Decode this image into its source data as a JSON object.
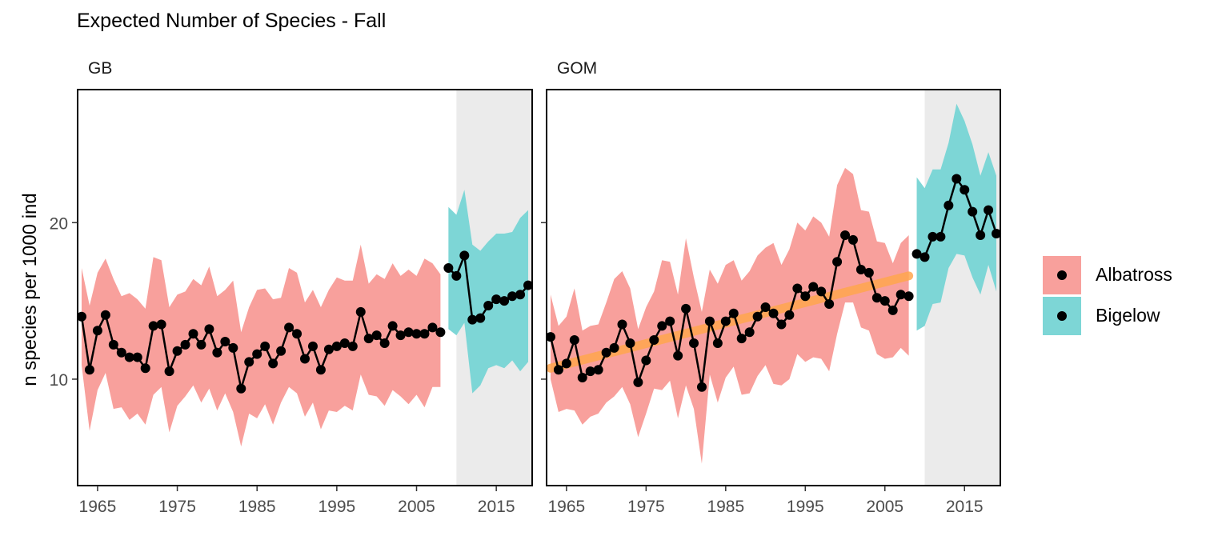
{
  "title": "Expected Number of Species - Fall",
  "ylabel": "n species per 1000 ind",
  "legend": [
    {
      "label": "Albatross",
      "color": "#F8A09C"
    },
    {
      "label": "Bigelow",
      "color": "#7DD6D6"
    }
  ],
  "colors": {
    "albatross_ribbon": "#F8A09C",
    "bigelow_ribbon": "#7DD6D6",
    "bigelow_period_shade": "#EBEBEB",
    "trend_line": "#FFA64D",
    "points": "#000000"
  },
  "chart_data": {
    "type": "line",
    "xlim": [
      1962.5,
      2019.5
    ],
    "ylim": [
      3.2,
      28.5
    ],
    "x_ticks": [
      1965,
      1975,
      1985,
      1995,
      2005,
      2015
    ],
    "y_ticks": [
      10,
      20
    ],
    "bigelow_shade_from": 2010,
    "panels": [
      {
        "name": "GB",
        "series": [
          {
            "name": "Albatross",
            "x": [
              1963,
              1964,
              1965,
              1966,
              1967,
              1968,
              1969,
              1970,
              1971,
              1972,
              1973,
              1974,
              1975,
              1976,
              1977,
              1978,
              1979,
              1980,
              1981,
              1982,
              1983,
              1984,
              1985,
              1986,
              1987,
              1988,
              1989,
              1990,
              1991,
              1992,
              1993,
              1994,
              1995,
              1996,
              1997,
              1998,
              1999,
              2000,
              2001,
              2002,
              2003,
              2004,
              2005,
              2006,
              2007,
              2008
            ],
            "y": [
              14.0,
              10.6,
              13.1,
              14.1,
              12.2,
              11.7,
              11.4,
              11.4,
              10.7,
              13.4,
              13.5,
              10.5,
              11.8,
              12.2,
              12.9,
              12.2,
              13.2,
              11.7,
              12.4,
              12.0,
              9.4,
              11.1,
              11.6,
              12.1,
              11.0,
              11.8,
              13.3,
              12.9,
              11.3,
              12.1,
              10.6,
              11.9,
              12.1,
              12.3,
              12.1,
              14.3,
              12.6,
              12.8,
              12.3,
              13.4,
              12.8,
              13.0,
              12.9,
              12.9,
              13.3,
              13.0
            ],
            "upper": [
              17.1,
              14.7,
              16.8,
              17.7,
              16.4,
              15.3,
              15.5,
              15.1,
              14.5,
              17.8,
              17.6,
              14.6,
              15.4,
              15.6,
              16.4,
              16.0,
              17.2,
              15.3,
              15.7,
              16.3,
              13.0,
              14.6,
              15.7,
              15.8,
              15.1,
              15.2,
              17.1,
              16.8,
              14.9,
              15.7,
              14.6,
              15.7,
              16.5,
              16.3,
              16.3,
              18.6,
              16.1,
              16.7,
              16.4,
              17.4,
              16.6,
              17.0,
              16.6,
              17.7,
              17.4,
              16.7
            ],
            "lower": [
              10.9,
              6.7,
              9.3,
              10.4,
              8.1,
              8.2,
              7.4,
              7.8,
              7.1,
              9.0,
              9.5,
              6.6,
              8.3,
              8.9,
              9.6,
              8.5,
              9.4,
              8.0,
              9.1,
              7.9,
              5.7,
              7.8,
              7.5,
              8.4,
              7.1,
              8.5,
              9.5,
              9.1,
              7.6,
              8.5,
              6.8,
              8.0,
              7.9,
              8.3,
              8.0,
              10.3,
              9.0,
              8.9,
              8.3,
              9.3,
              8.9,
              8.4,
              9.0,
              8.2,
              9.5,
              9.5
            ]
          },
          {
            "name": "Bigelow",
            "x": [
              2009,
              2010,
              2011,
              2012,
              2013,
              2014,
              2015,
              2016,
              2017,
              2018,
              2019
            ],
            "y": [
              17.1,
              16.6,
              17.9,
              13.8,
              13.9,
              14.7,
              15.1,
              15.0,
              15.3,
              15.4,
              16.0
            ],
            "upper": [
              21.0,
              20.5,
              22.1,
              18.6,
              18.2,
              18.8,
              19.3,
              19.3,
              19.4,
              20.3,
              20.8
            ],
            "lower": [
              13.2,
              12.8,
              13.6,
              9.1,
              9.6,
              10.7,
              10.9,
              10.7,
              11.2,
              10.5,
              11.1
            ]
          }
        ]
      },
      {
        "name": "GOM",
        "trend": {
          "x": [
            1963,
            2008
          ],
          "y": [
            10.7,
            16.6
          ]
        },
        "series": [
          {
            "name": "Albatross",
            "x": [
              1963,
              1964,
              1965,
              1966,
              1967,
              1968,
              1969,
              1970,
              1971,
              1972,
              1973,
              1974,
              1975,
              1976,
              1977,
              1978,
              1979,
              1980,
              1981,
              1982,
              1983,
              1984,
              1985,
              1986,
              1987,
              1988,
              1989,
              1990,
              1991,
              1992,
              1993,
              1994,
              1995,
              1996,
              1997,
              1998,
              1999,
              2000,
              2001,
              2002,
              2003,
              2004,
              2005,
              2006,
              2007,
              2008
            ],
            "y": [
              12.7,
              10.6,
              11.0,
              12.5,
              10.1,
              10.5,
              10.6,
              11.7,
              12.0,
              13.5,
              12.3,
              9.8,
              11.2,
              12.5,
              13.4,
              13.7,
              11.5,
              14.5,
              12.3,
              9.5,
              13.7,
              12.3,
              13.7,
              14.2,
              12.6,
              13.0,
              14.0,
              14.6,
              14.2,
              13.5,
              14.1,
              15.8,
              15.3,
              15.9,
              15.6,
              14.8,
              17.5,
              19.2,
              18.9,
              17.0,
              16.8,
              15.2,
              15.0,
              14.4,
              15.4,
              15.3
            ],
            "upper": [
              15.4,
              13.4,
              14.0,
              15.8,
              13.1,
              13.4,
              13.5,
              14.9,
              16.4,
              16.9,
              15.8,
              13.2,
              14.6,
              15.6,
              17.6,
              17.5,
              15.4,
              19.0,
              16.5,
              14.3,
              17.0,
              16.1,
              17.3,
              17.6,
              16.3,
              16.9,
              17.9,
              18.4,
              18.7,
              17.3,
              18.3,
              20.0,
              19.5,
              20.4,
              20.0,
              19.1,
              22.4,
              23.5,
              23.1,
              20.8,
              20.7,
              18.8,
              18.7,
              17.4,
              18.7,
              19.2
            ],
            "lower": [
              10.0,
              7.9,
              8.1,
              8.0,
              7.1,
              7.6,
              7.8,
              8.5,
              8.9,
              9.5,
              8.4,
              6.3,
              7.8,
              9.4,
              9.3,
              9.9,
              7.5,
              9.6,
              8.1,
              4.6,
              10.3,
              8.5,
              10.1,
              10.8,
              9.0,
              9.1,
              10.2,
              10.9,
              9.7,
              9.6,
              10.0,
              11.6,
              11.1,
              11.4,
              11.3,
              10.5,
              12.9,
              14.9,
              14.9,
              13.3,
              13.1,
              11.6,
              11.3,
              11.4,
              12.0,
              11.5
            ]
          },
          {
            "name": "Bigelow",
            "x": [
              2009,
              2010,
              2011,
              2012,
              2013,
              2014,
              2015,
              2016,
              2017,
              2018,
              2019
            ],
            "y": [
              18.0,
              17.8,
              19.1,
              19.1,
              21.1,
              22.8,
              22.1,
              20.7,
              19.2,
              20.8,
              19.3
            ],
            "upper": [
              22.9,
              22.2,
              23.4,
              23.4,
              25.1,
              27.6,
              26.5,
              25.0,
              23.0,
              24.5,
              23.0
            ],
            "lower": [
              13.1,
              13.4,
              14.8,
              14.9,
              17.1,
              18.0,
              17.9,
              16.5,
              15.4,
              17.3,
              15.6
            ]
          }
        ]
      }
    ]
  }
}
